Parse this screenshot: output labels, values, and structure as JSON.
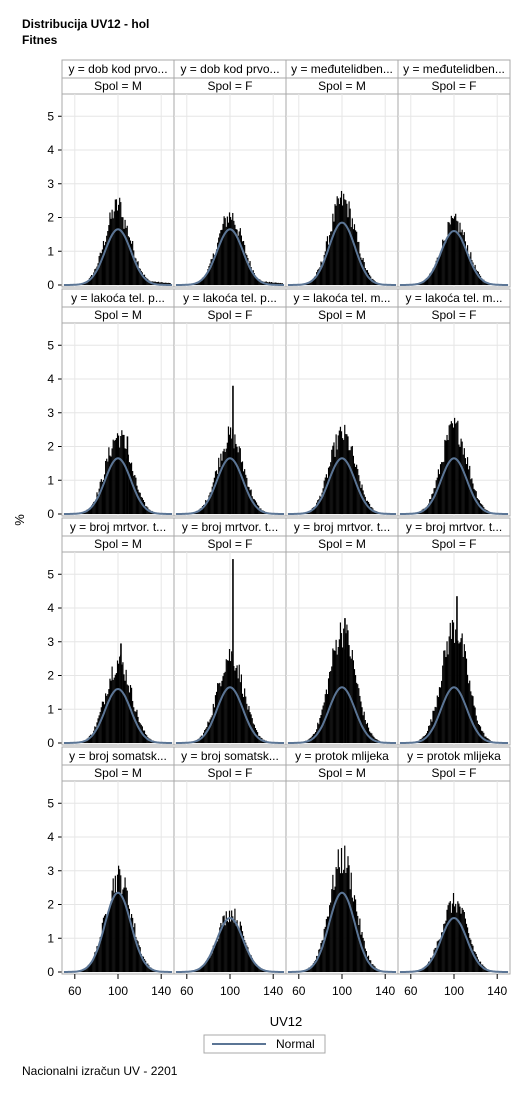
{
  "title": {
    "line1": "Distribucija UV12 - hol",
    "line2": "Fitnes"
  },
  "footnote": "Nacionalni izračun UV - 2201",
  "chart_data": {
    "type": "histogram-panel",
    "xlabel": "UV12",
    "ylabel": "%",
    "xticks": [
      60,
      100,
      140
    ],
    "yticks": [
      0,
      1,
      2,
      3,
      4,
      5
    ],
    "xlim": [
      50,
      150
    ],
    "ylim": [
      0,
      5.6
    ],
    "legend": {
      "entries": [
        "Normal"
      ],
      "placement": "bottom-center"
    },
    "colors": {
      "bars": "#000000",
      "normal_curve": "#5b7595",
      "header_bg": "#ffffff",
      "grid": "#e6e6e6",
      "frame": "#a9a9a9"
    },
    "rows": [
      {
        "labels": [
          "y = dob kod prvo...",
          "y = dob kod prvo...",
          "y = međutelidben...",
          "y = međutelidben..."
        ],
        "spol": [
          "Spol = M",
          "Spol = F",
          "Spol = M",
          "Spol = F"
        ],
        "panels": [
          {
            "peak": 2.35,
            "curve_peak": 1.65,
            "skew": 0.8,
            "spike": null
          },
          {
            "peak": 2.05,
            "curve_peak": 1.65,
            "skew": 0.3,
            "spike": null
          },
          {
            "peak": 2.5,
            "curve_peak": 1.85,
            "skew": 0.0,
            "spike": null
          },
          {
            "peak": 1.85,
            "curve_peak": 1.6,
            "skew": 0.0,
            "spike": null
          }
        ]
      },
      {
        "labels": [
          "y = lakoća tel. p...",
          "y = lakoća tel. p...",
          "y = lakoća tel. m...",
          "y = lakoća tel. m..."
        ],
        "spol": [
          "Spol = M",
          "Spol = F",
          "Spol = M",
          "Spol = F"
        ],
        "panels": [
          {
            "peak": 2.3,
            "curve_peak": 1.65,
            "skew": -0.3,
            "spike": 2.3
          },
          {
            "peak": 2.3,
            "curve_peak": 1.65,
            "skew": -0.3,
            "spike": 3.8
          },
          {
            "peak": 2.35,
            "curve_peak": 1.65,
            "skew": 0.0,
            "spike": null
          },
          {
            "peak": 2.55,
            "curve_peak": 1.65,
            "skew": 0.0,
            "spike": null
          }
        ]
      },
      {
        "labels": [
          "y = broj mrtvor. t...",
          "y = broj mrtvor. t...",
          "y = broj mrtvor. t...",
          "y = broj mrtvor. t..."
        ],
        "spol": [
          "Spol = M",
          "Spol = F",
          "Spol = M",
          "Spol = F"
        ],
        "panels": [
          {
            "peak": 2.4,
            "curve_peak": 1.6,
            "skew": 0.0,
            "spike": 2.95
          },
          {
            "peak": 2.6,
            "curve_peak": 1.65,
            "skew": 0.0,
            "spike": 5.45
          },
          {
            "peak": 3.3,
            "curve_peak": 1.65,
            "skew": 0.0,
            "spike": 3.7
          },
          {
            "peak": 3.4,
            "curve_peak": 1.65,
            "skew": 0.0,
            "spike": 4.35
          }
        ]
      },
      {
        "labels": [
          "y = broj somatsk...",
          "y = broj somatsk...",
          "y = protok mlijeka",
          "y = protok mlijeka"
        ],
        "spol": [
          "Spol = M",
          "Spol = F",
          "Spol = M",
          "Spol = F"
        ],
        "panels": [
          {
            "peak": 2.8,
            "curve_peak": 2.35,
            "skew": 0.0,
            "spike": null
          },
          {
            "peak": 1.75,
            "curve_peak": 1.6,
            "skew": 0.0,
            "spike": null
          },
          {
            "peak": 3.35,
            "curve_peak": 2.35,
            "skew": 0.0,
            "spike": null
          },
          {
            "peak": 2.05,
            "curve_peak": 1.6,
            "skew": 0.0,
            "spike": null
          }
        ]
      }
    ]
  }
}
